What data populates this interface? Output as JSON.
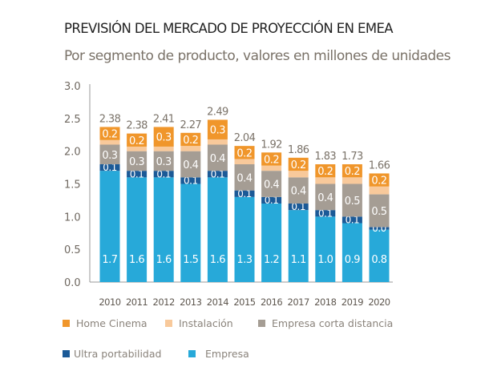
{
  "chart_data": {
    "type": "bar",
    "stacked": true,
    "title": "PREVISIÓN DEL MERCADO DE PROYECCIÓN EN EMEA",
    "subtitle": "Por segmento de producto, valores en millones de unidades",
    "categories": [
      "2010",
      "2011",
      "2012",
      "2013",
      "2014",
      "2015",
      "2016",
      "2017",
      "2018",
      "2019",
      "2020"
    ],
    "ylim": [
      0,
      3.0
    ],
    "yticks": [
      "0.0",
      "0.5",
      "1.0",
      "1.5",
      "2.0",
      "2.5",
      "3.0"
    ],
    "grid": false,
    "legend_position": "bottom",
    "totals": [
      "2.38",
      "2.38",
      "2.41",
      "2.27",
      "2.49",
      "2.04",
      "1.92",
      "1.86",
      "1.83",
      "1.73",
      "1.66"
    ],
    "series": [
      {
        "name": "Empresa",
        "color": "#27a9d9",
        "values": [
          1.7,
          1.6,
          1.6,
          1.5,
          1.6,
          1.3,
          1.2,
          1.1,
          1.0,
          0.9,
          0.8
        ],
        "labels": [
          "1.7",
          "1.6",
          "1.6",
          "1.5",
          "1.6",
          "1.3",
          "1.2",
          "1.1",
          "1.0",
          "0.9",
          "0.8"
        ]
      },
      {
        "name": "Ultra portabilidad",
        "color": "#1b5a97",
        "values": [
          0.1,
          0.1,
          0.1,
          0.1,
          0.1,
          0.1,
          0.1,
          0.1,
          0.1,
          0.1,
          0.04
        ],
        "labels": [
          "0.1",
          "0.1",
          "0.1",
          "0.1",
          "0.1",
          "0.1",
          "0.1",
          "0.1",
          "0.1",
          "0.1",
          "0.0"
        ]
      },
      {
        "name": "Empresa corta distancia",
        "color": "#a59d94",
        "values": [
          0.3,
          0.3,
          0.3,
          0.4,
          0.4,
          0.4,
          0.4,
          0.4,
          0.4,
          0.5,
          0.5
        ],
        "labels": [
          "0.3",
          "0.3",
          "0.3",
          "0.4",
          "0.4",
          "0.4",
          "0.4",
          "0.4",
          "0.4",
          "0.5",
          "0.5"
        ]
      },
      {
        "name": "Instalación",
        "color": "#f8c99b",
        "values": [
          0.07,
          0.07,
          0.07,
          0.08,
          0.08,
          0.08,
          0.08,
          0.1,
          0.1,
          0.1,
          0.12
        ],
        "labels": []
      },
      {
        "name": "Home Cinema",
        "color": "#f0962b",
        "values": [
          0.2,
          0.2,
          0.3,
          0.2,
          0.3,
          0.2,
          0.2,
          0.2,
          0.2,
          0.2,
          0.2
        ],
        "labels": [
          "0.2",
          "0.2",
          "0.3",
          "0.2",
          "0.3",
          "0.2",
          "0.2",
          "0.2",
          "0.2",
          "0.2",
          "0.2"
        ]
      }
    ],
    "legend": [
      {
        "name": "Home Cinema",
        "color": "#f0962b"
      },
      {
        "name": "Instalación",
        "color": "#f8c99b"
      },
      {
        "name": "Empresa corta distancia",
        "color": "#a59d94"
      },
      {
        "name": "Ultra portabilidad",
        "color": "#1b5a97"
      },
      {
        "name": "Empresa",
        "color": "#27a9d9"
      }
    ]
  }
}
